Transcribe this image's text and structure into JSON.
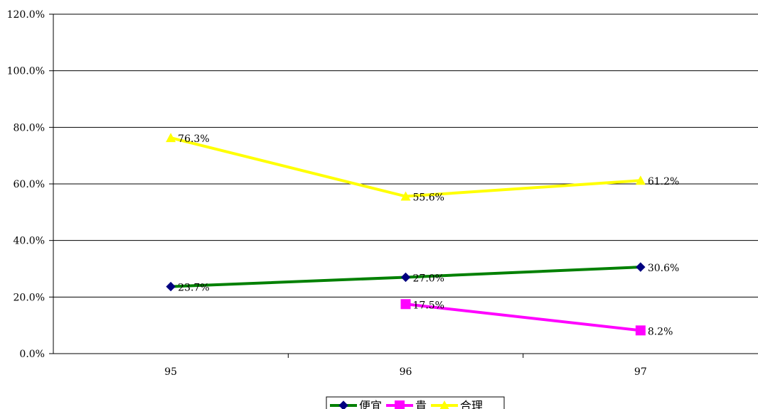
{
  "chart_data": {
    "type": "line",
    "categories": [
      "95",
      "96",
      "97"
    ],
    "ylim": [
      0,
      120
    ],
    "yticks": [
      "0.0%",
      "20.0%",
      "40.0%",
      "60.0%",
      "80.0%",
      "100.0%",
      "120.0%"
    ],
    "grid": true,
    "legend_position": "bottom-center",
    "series": [
      {
        "name": "便宜",
        "values": [
          23.7,
          27.0,
          30.6
        ],
        "labels": [
          "23.7%",
          "27.0%",
          "30.6%"
        ],
        "color": "#008000",
        "marker": "diamond",
        "marker_color": "#000080"
      },
      {
        "name": "貴",
        "values": [
          null,
          17.5,
          8.2
        ],
        "labels": [
          "",
          "17.5%",
          "8.2%"
        ],
        "color": "#FF00FF",
        "marker": "square",
        "marker_color": "#FF00FF"
      },
      {
        "name": "合理",
        "values": [
          76.3,
          55.6,
          61.2
        ],
        "labels": [
          "76.3%",
          "55.6%",
          "61.2%"
        ],
        "color": "#FFFF00",
        "marker": "triangle",
        "marker_color": "#FFFF00"
      }
    ]
  }
}
